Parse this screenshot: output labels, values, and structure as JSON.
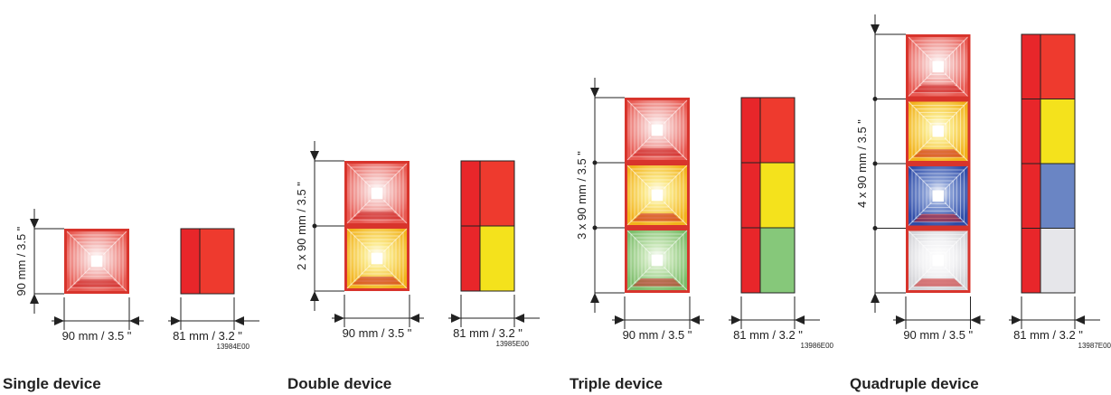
{
  "colors": {
    "red": "#e8262a",
    "red_light": "#ee3a2e",
    "yellow": "#f4e21c",
    "blue": "#6a85c4",
    "green": "#86c87a",
    "white": "#e6e6ea",
    "frame": "#d8342c",
    "line": "#222222"
  },
  "devices": [
    {
      "id": "single",
      "title": "Single device",
      "height_dim": "90 mm / 3.5 \"",
      "width_front": "90 mm / 3.5 \"",
      "width_side": "81 mm / 3.2 \"",
      "code": "13984E00",
      "modules": [
        "red"
      ]
    },
    {
      "id": "double",
      "title": "Double device",
      "height_dim": "2 x 90 mm / 3.5 \"",
      "width_front": "90 mm / 3.5 \"",
      "width_side": "81 mm / 3.2 \"",
      "code": "13985E00",
      "modules": [
        "red",
        "yellow"
      ]
    },
    {
      "id": "triple",
      "title": "Triple device",
      "height_dim": "3 x 90 mm / 3.5 \"",
      "width_front": "90 mm / 3.5 \"",
      "width_side": "81 mm / 3.2 \"",
      "code": "13986E00",
      "modules": [
        "red",
        "yellow",
        "green"
      ]
    },
    {
      "id": "quadruple",
      "title": "Quadruple device",
      "height_dim": "4 x 90 mm / 3.5 \"",
      "width_front": "90 mm / 3.5 \"",
      "width_side": "81 mm / 3.2 \"",
      "code": "13987E00",
      "modules": [
        "red",
        "yellow",
        "blue",
        "white"
      ]
    }
  ]
}
